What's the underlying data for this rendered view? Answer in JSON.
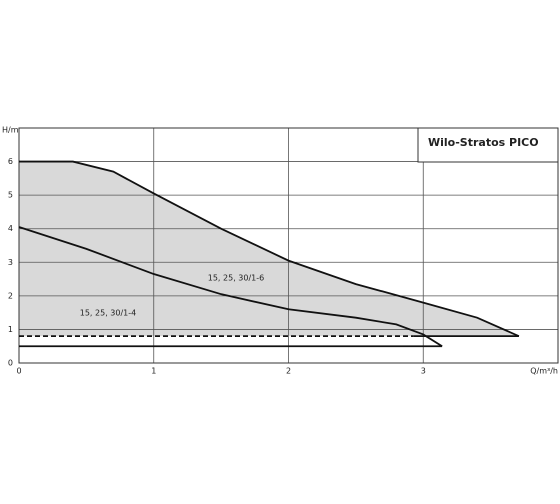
{
  "chart_data": {
    "type": "line",
    "title": "Wilo-Stratos PICO",
    "y_label": "H/m",
    "x_label": "Q/m³/h",
    "xlim": [
      0,
      4
    ],
    "ylim": [
      0,
      7
    ],
    "xticks": [
      0,
      1,
      2,
      3
    ],
    "yticks": [
      0,
      1,
      2,
      3,
      4,
      5,
      6
    ],
    "grid": true,
    "fill_color": "#d9d9d9",
    "series": [
      {
        "name": "15, 25, 30/1-6",
        "color": "#111",
        "fill": true,
        "x": [
          0,
          0.4,
          0.7,
          1,
          1.5,
          2,
          2.5,
          3,
          3.4,
          3.71
        ],
        "values": [
          6,
          6,
          5.7,
          5.05,
          4.0,
          3.05,
          2.35,
          1.8,
          1.35,
          0.8
        ]
      },
      {
        "name": "15, 25, 30/1-4",
        "color": "#111",
        "x": [
          0,
          0.5,
          1,
          1.5,
          2,
          2.5,
          2.8,
          3,
          3.14
        ],
        "values": [
          4.05,
          3.4,
          2.65,
          2.05,
          1.6,
          1.35,
          1.15,
          0.85,
          0.5
        ]
      },
      {
        "color": "#111",
        "dash": true,
        "x": [
          0,
          2.93
        ],
        "values": [
          0.8,
          0.8
        ]
      },
      {
        "color": "#111",
        "x": [
          2.93,
          3.71
        ],
        "values": [
          0.8,
          0.8
        ]
      },
      {
        "color": "#111",
        "x": [
          0,
          3.14
        ],
        "values": [
          0.5,
          0.5
        ]
      }
    ]
  }
}
